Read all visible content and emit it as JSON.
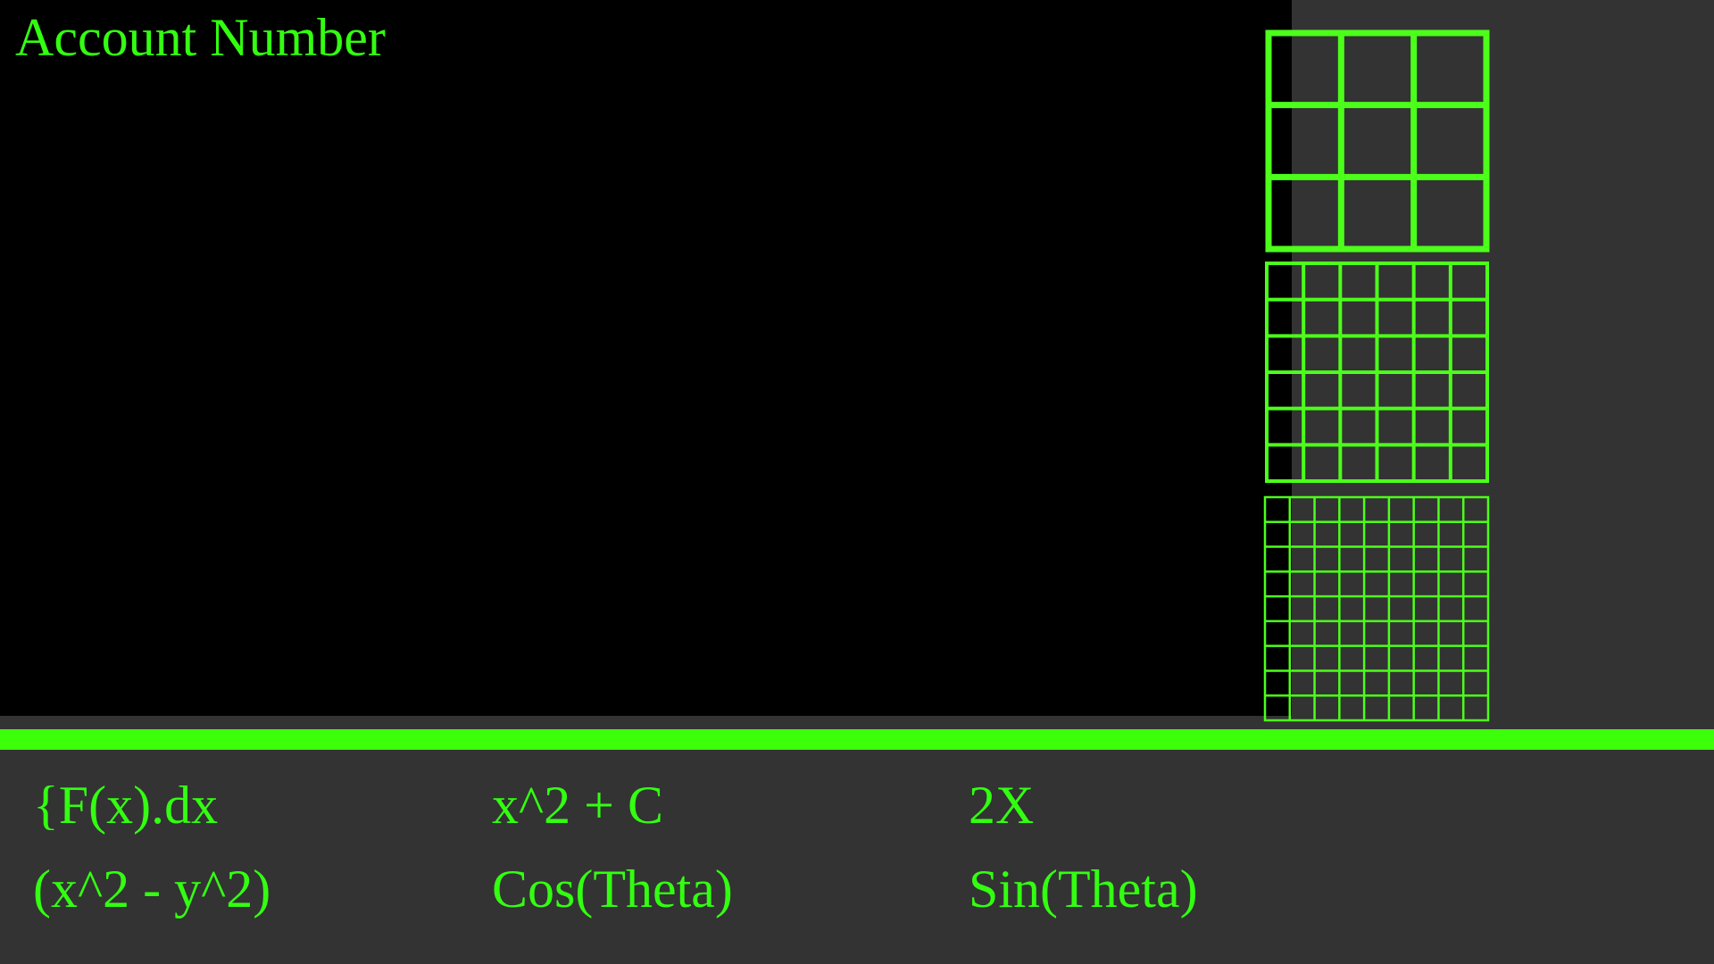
{
  "header": {
    "title": "Account Number"
  },
  "formulas": {
    "rows": [
      [
        "{F(x).dx",
        "x^2 + C",
        "2X"
      ],
      [
        "(x^2 - y^2)",
        "Cos(Theta)",
        "Sin(Theta)"
      ]
    ]
  }
}
